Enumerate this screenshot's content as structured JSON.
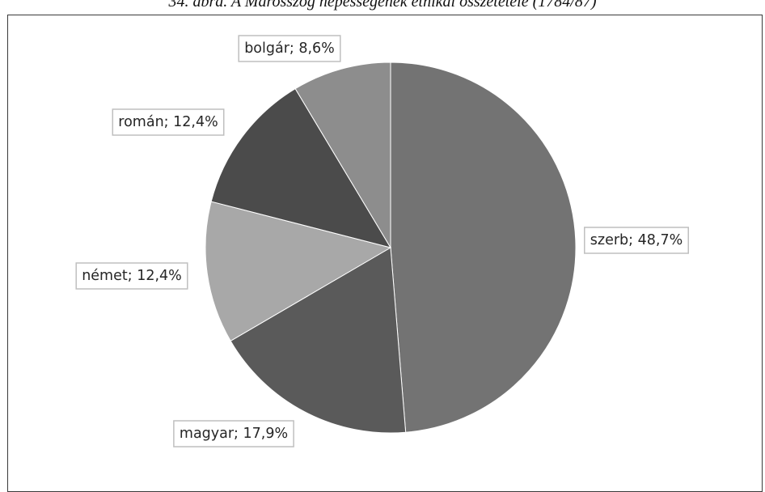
{
  "caption": "34. ábra. A Marosszög népességének etnikai összetétele (1784/87)",
  "chart_data": {
    "type": "pie",
    "slices": [
      {
        "category": "szerb",
        "value": 48.7,
        "label": "szerb; 48,7%",
        "color": "#737373"
      },
      {
        "category": "magyar",
        "value": 17.9,
        "label": "magyar; 17,9%",
        "color": "#5a5a5a"
      },
      {
        "category": "német",
        "value": 12.4,
        "label": "német; 12,4%",
        "color": "#a8a8a8"
      },
      {
        "category": "román",
        "value": 12.4,
        "label": "román; 12,4%",
        "color": "#4b4b4b"
      },
      {
        "category": "bolgár",
        "value": 8.6,
        "label": "bolgár; 8,6%",
        "color": "#8d8d8d"
      }
    ],
    "start_angle": "12 o'clock",
    "direction": "clockwise",
    "legend": "none"
  }
}
